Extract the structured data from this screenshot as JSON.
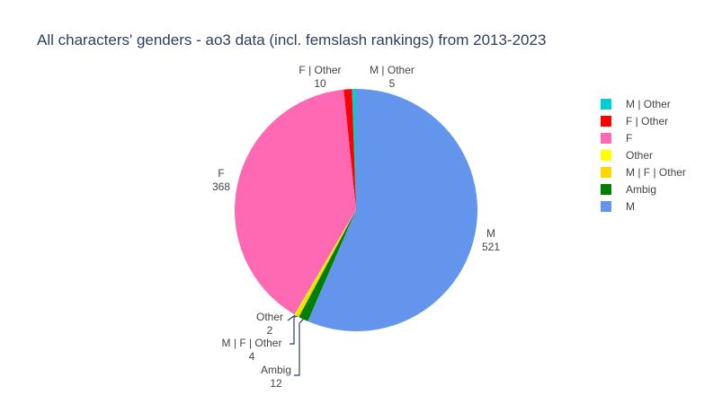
{
  "title": "All characters' genders - ao3 data (incl. femslash rankings) from 2013-2023",
  "chart_data": {
    "type": "pie",
    "title": "All characters' genders - ao3 data (incl. femslash rankings) from 2013-2023",
    "slices": [
      {
        "name": "M | Other",
        "value": 5,
        "color": "#00CED1"
      },
      {
        "name": "F | Other",
        "value": 10,
        "color": "#FF0000"
      },
      {
        "name": "F",
        "value": 368,
        "color": "#FF69B4"
      },
      {
        "name": "Other",
        "value": 2,
        "color": "#FFFF00"
      },
      {
        "name": "M | F | Other",
        "value": 4,
        "color": "#FFD700"
      },
      {
        "name": "Ambig",
        "value": 12,
        "color": "#008000"
      },
      {
        "name": "M",
        "value": 521,
        "color": "#6495ED"
      }
    ],
    "legend_position": "right",
    "direction": "counterclockwise",
    "start": "top"
  },
  "legend": {
    "items": [
      {
        "label": "M | Other",
        "color": "#00CED1"
      },
      {
        "label": "F | Other",
        "color": "#FF0000"
      },
      {
        "label": "F",
        "color": "#FF69B4"
      },
      {
        "label": "Other",
        "color": "#FFFF00"
      },
      {
        "label": "M | F | Other",
        "color": "#FFD700"
      },
      {
        "label": "Ambig",
        "color": "#008000"
      },
      {
        "label": "M",
        "color": "#6495ED"
      }
    ]
  }
}
